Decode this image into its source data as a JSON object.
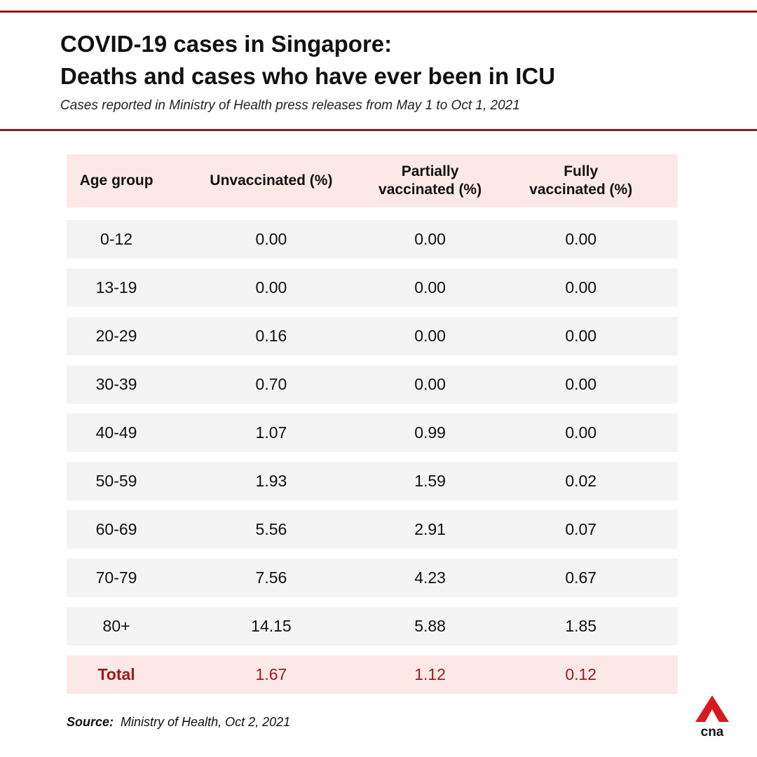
{
  "title": {
    "line1": "COVID-19 cases in Singapore:",
    "line2": "Deaths and cases who have ever been in ICU"
  },
  "subtitle": "Cases reported in Ministry of Health press releases from May 1 to Oct 1, 2021",
  "chart_data": {
    "type": "table",
    "columns": [
      "Age group",
      "Unvaccinated (%)",
      "Partially vaccinated (%)",
      "Fully vaccinated (%)"
    ],
    "rows": [
      [
        "0-12",
        "0.00",
        "0.00",
        "0.00"
      ],
      [
        "13-19",
        "0.00",
        "0.00",
        "0.00"
      ],
      [
        "20-29",
        "0.16",
        "0.00",
        "0.00"
      ],
      [
        "30-39",
        "0.70",
        "0.00",
        "0.00"
      ],
      [
        "40-49",
        "1.07",
        "0.99",
        "0.00"
      ],
      [
        "50-59",
        "1.93",
        "1.59",
        "0.02"
      ],
      [
        "60-69",
        "5.56",
        "2.91",
        "0.07"
      ],
      [
        "70-79",
        "7.56",
        "4.23",
        "0.67"
      ],
      [
        "80+",
        "14.15",
        "5.88",
        "1.85"
      ]
    ],
    "total": [
      "Total",
      "1.67",
      "1.12",
      "0.12"
    ]
  },
  "source": {
    "label": "Source:",
    "text": "Ministry of Health, Oct 2, 2021"
  },
  "logo": {
    "text": "cna",
    "color": "#d71920"
  },
  "colors": {
    "rule": "#8c1d1d",
    "header_bg": "#fde8e8",
    "row_bg": "#f4f4f4",
    "total_text": "#a31919"
  }
}
